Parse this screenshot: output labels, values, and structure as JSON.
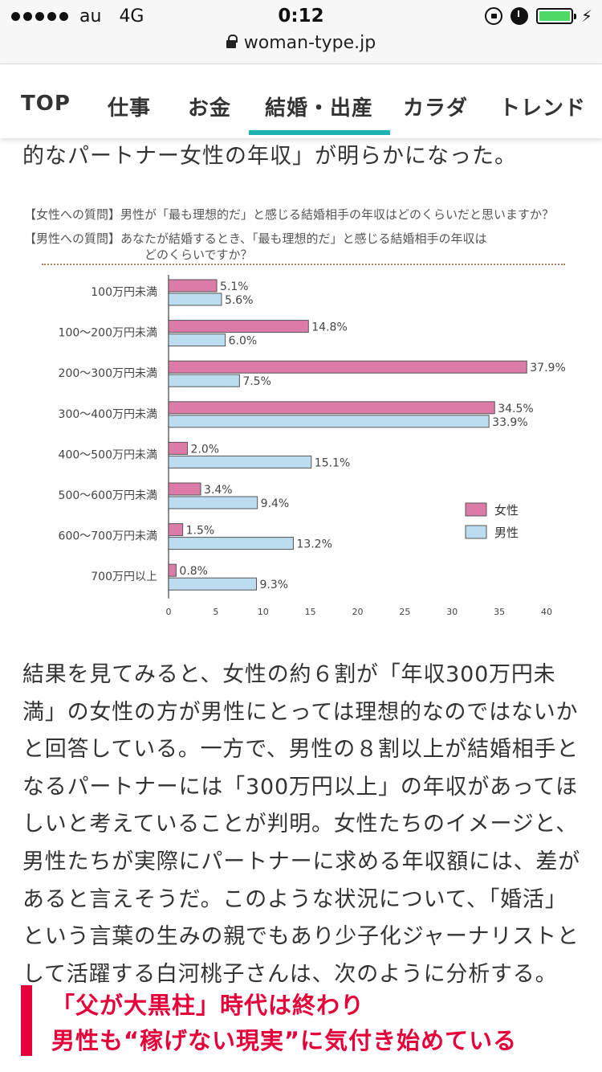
{
  "status_bar": {
    "carrier": "au",
    "network": "4G",
    "time": "0:12",
    "bolt": "⚡"
  },
  "url_bar": {
    "domain": "woman-type.jp"
  },
  "nav": {
    "items": [
      {
        "label": "TOP"
      },
      {
        "label": "仕事"
      },
      {
        "label": "お金"
      },
      {
        "label": "結婚・出産",
        "active": true
      },
      {
        "label": "カラダ"
      },
      {
        "label": "トレンド"
      }
    ],
    "accent_color": "#1ab3b0"
  },
  "article": {
    "lead_fragment": "的なパートナー女性の年収」が明らかになった。",
    "body_lines": [
      "結果を見てみると、女性の約６割が「年収300万円未",
      "満」の女性の方が男性にとっては理想的なのではないか",
      "と回答している。一方で、男性の８割以上が結婚相手と",
      "なるパートナーには「300万円以上」の年収があってほ",
      "しいと考えていることが判明。女性たちのイメージと、",
      "男性たちが実際にパートナーに求める年収額には、差が",
      "あると言えそうだ。このような状況について、「婚活」",
      "という言葉の生みの親でもあり少子化ジャーナリストと",
      "して活躍する白河桃子さんは、次のように分析する。"
    ],
    "section_heading": {
      "line1": "「父が大黒柱」時代は終わり",
      "line2": "男性も“稼げない現実”に気付き始めている",
      "color": "#e6003a"
    }
  },
  "chart_data": {
    "type": "bar",
    "orientation": "horizontal",
    "question_women": "【女性への質問】男性が「最も理想的だ」と感じる結婚相手の年収はどのくらいだと思いますか？",
    "question_men_line1": "【男性への質問】あなたが結婚するとき、「最も理想的だ」と感じる結婚相手の年収は",
    "question_men_line2": "どのくらいですか？",
    "categories": [
      "100万円未満",
      "100～200万円未満",
      "200～300万円未満",
      "300～400万円未満",
      "400～500万円未満",
      "500～600万円未満",
      "600～700万円未満",
      "700万円以上"
    ],
    "series": [
      {
        "name": "女性",
        "color": "#dc7aa8",
        "values": [
          5.1,
          14.8,
          37.9,
          34.5,
          2.0,
          3.4,
          1.5,
          0.8
        ],
        "labels": [
          "5.1%",
          "14.8%",
          "37.9%",
          "34.5%",
          "2.0%",
          "3.4%",
          "1.5%",
          "0.8%"
        ]
      },
      {
        "name": "男性",
        "color": "#bcdcf0",
        "values": [
          5.6,
          6.0,
          7.5,
          33.9,
          15.1,
          9.4,
          13.2,
          9.3
        ],
        "labels": [
          "5.6%",
          "6.0%",
          "7.5%",
          "33.9%",
          "15.1%",
          "9.4%",
          "13.2%",
          "9.3%"
        ]
      }
    ],
    "xlim": [
      0,
      40
    ],
    "xticks": [
      "0",
      "5",
      "10",
      "15",
      "20",
      "25",
      "30",
      "35",
      "40"
    ],
    "legend_position": "right",
    "grid": false
  }
}
